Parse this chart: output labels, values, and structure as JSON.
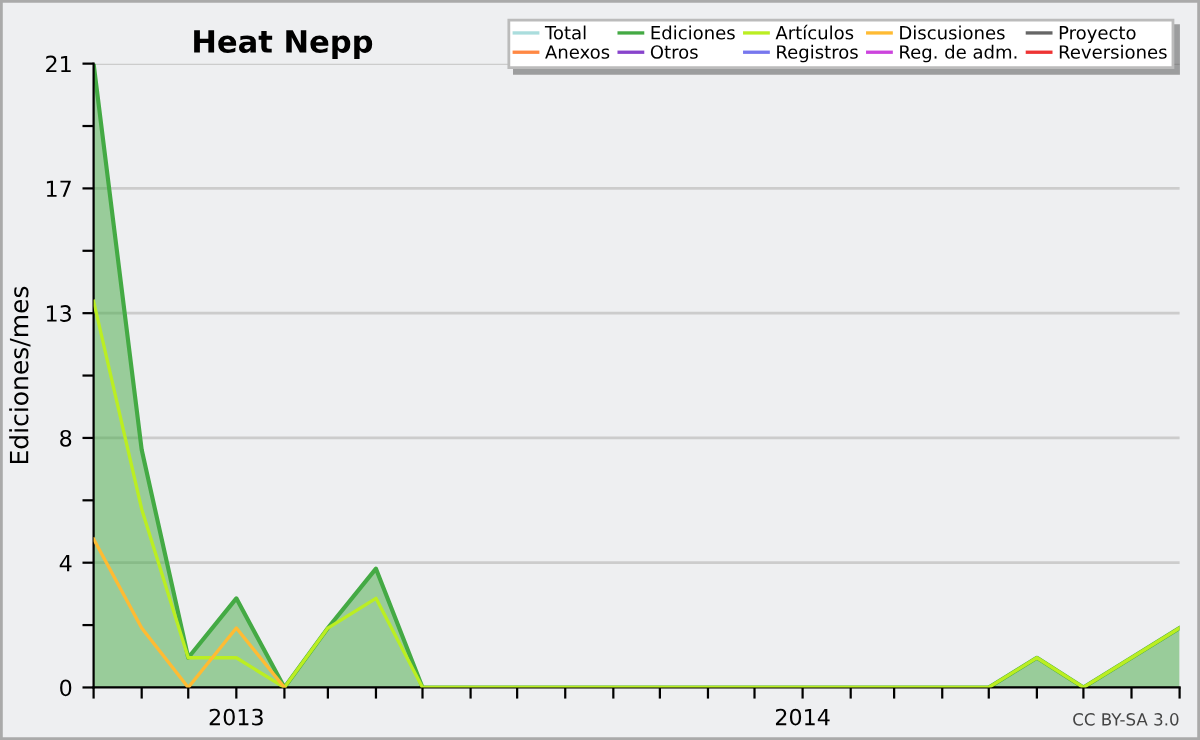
{
  "chart_data": {
    "type": "line",
    "title": "Heat Nepp",
    "ylabel": "Ediciones/mes",
    "x": [
      "2012-10",
      "2012-11",
      "2012-12",
      "2013-01",
      "2013-02",
      "2013-03",
      "2013-04",
      "2013-05",
      "2013-06",
      "2013-07",
      "2013-08",
      "2013-09",
      "2013-10",
      "2013-11",
      "2013-12",
      "2014-01",
      "2014-02",
      "2014-03",
      "2014-04",
      "2014-05",
      "2014-06",
      "2014-07",
      "2014-08",
      "2014-09"
    ],
    "series": [
      {
        "name": "Total",
        "color": "#aadddd",
        "values": [
          null,
          null,
          null,
          null,
          null,
          null,
          null,
          null,
          null,
          null,
          null,
          null,
          null,
          null,
          null,
          null,
          null,
          null,
          null,
          null,
          null,
          null,
          null,
          null
        ]
      },
      {
        "name": "Ediciones",
        "type": "area",
        "color": "#44aa44",
        "values": [
          21,
          8,
          1,
          3,
          0,
          2,
          4,
          0,
          0,
          0,
          0,
          0,
          0,
          0,
          0,
          0,
          0,
          0,
          0,
          0,
          1,
          0,
          1,
          2
        ]
      },
      {
        "name": "Artículos",
        "color": "#bbee22",
        "values": [
          13,
          6,
          1,
          1,
          0,
          2,
          3,
          0,
          0,
          0,
          0,
          0,
          0,
          0,
          0,
          0,
          0,
          0,
          0,
          0,
          1,
          0,
          1,
          2
        ]
      },
      {
        "name": "Discusiones",
        "color": "#ffbb33",
        "values": [
          5,
          2,
          0,
          2,
          0,
          null,
          null,
          null,
          null,
          null,
          null,
          null,
          null,
          null,
          null,
          null,
          null,
          null,
          null,
          null,
          null,
          null,
          null,
          null
        ]
      },
      {
        "name": "Proyecto",
        "color": "#666666",
        "values": [
          null,
          null,
          null,
          null,
          null,
          null,
          null,
          null,
          null,
          null,
          null,
          null,
          null,
          null,
          null,
          null,
          null,
          null,
          null,
          null,
          null,
          null,
          null,
          null
        ]
      },
      {
        "name": "Anexos",
        "color": "#ff8844",
        "values": [
          null,
          null,
          null,
          null,
          null,
          null,
          null,
          null,
          null,
          null,
          null,
          null,
          null,
          null,
          null,
          null,
          null,
          null,
          null,
          null,
          null,
          null,
          null,
          null
        ]
      },
      {
        "name": "Otros",
        "color": "#8844cc",
        "values": [
          null,
          null,
          null,
          null,
          null,
          null,
          null,
          null,
          null,
          null,
          null,
          null,
          null,
          null,
          null,
          null,
          null,
          null,
          null,
          null,
          null,
          null,
          null,
          null
        ]
      },
      {
        "name": "Registros",
        "color": "#7777ee",
        "values": [
          null,
          null,
          null,
          null,
          null,
          null,
          null,
          null,
          null,
          null,
          null,
          null,
          null,
          null,
          null,
          null,
          null,
          null,
          null,
          null,
          null,
          null,
          null,
          null
        ]
      },
      {
        "name": "Reg. de adm.",
        "color": "#cc44dd",
        "values": [
          null,
          null,
          null,
          null,
          null,
          null,
          null,
          null,
          null,
          null,
          null,
          null,
          null,
          null,
          null,
          null,
          null,
          null,
          null,
          null,
          null,
          null,
          null,
          null
        ]
      },
      {
        "name": "Reversiones",
        "color": "#ee3333",
        "values": [
          null,
          null,
          null,
          null,
          null,
          null,
          null,
          null,
          null,
          null,
          null,
          null,
          null,
          null,
          null,
          null,
          null,
          null,
          null,
          null,
          null,
          null,
          null,
          null
        ]
      }
    ],
    "xlim": [
      "2012-10",
      "2014-09"
    ],
    "xticks": [
      {
        "value": "2012-10",
        "label": null
      },
      {
        "value": "2012-11",
        "label": null
      },
      {
        "value": "2012-12",
        "label": null
      },
      {
        "value": "2013-01",
        "label": "2013"
      },
      {
        "value": "2013-02",
        "label": null
      },
      {
        "value": "2013-03",
        "label": null
      },
      {
        "value": "2013-04",
        "label": null
      },
      {
        "value": "2013-05",
        "label": null
      },
      {
        "value": "2013-06",
        "label": null
      },
      {
        "value": "2013-07",
        "label": null
      },
      {
        "value": "2013-08",
        "label": null
      },
      {
        "value": "2013-09",
        "label": null
      },
      {
        "value": "2013-10",
        "label": null
      },
      {
        "value": "2013-11",
        "label": null
      },
      {
        "value": "2013-12",
        "label": null
      },
      {
        "value": "2014-01",
        "label": "2014"
      },
      {
        "value": "2014-02",
        "label": null
      },
      {
        "value": "2014-03",
        "label": null
      },
      {
        "value": "2014-04",
        "label": null
      },
      {
        "value": "2014-05",
        "label": null
      },
      {
        "value": "2014-06",
        "label": null
      },
      {
        "value": "2014-07",
        "label": null
      },
      {
        "value": "2014-08",
        "label": null
      },
      {
        "value": "2014-09",
        "label": null
      }
    ],
    "ylim": [
      0,
      21
    ],
    "yticks": [
      0,
      {
        "value": 2.1,
        "label": null
      },
      {
        "value": 4.2,
        "label": "4"
      },
      {
        "value": 6.3,
        "label": null
      },
      {
        "value": 8.4,
        "label": "8"
      },
      {
        "value": 10.5,
        "label": null
      },
      {
        "value": 12.6,
        "label": "13"
      },
      {
        "value": 14.7,
        "label": null
      },
      {
        "value": 16.8,
        "label": "17"
      },
      {
        "value": 18.9,
        "label": null
      },
      21
    ],
    "grid": "y",
    "legend": "top right",
    "marker": "none",
    "line_style": "solid",
    "annotations": [
      "CC BY-SA 3.0"
    ]
  }
}
